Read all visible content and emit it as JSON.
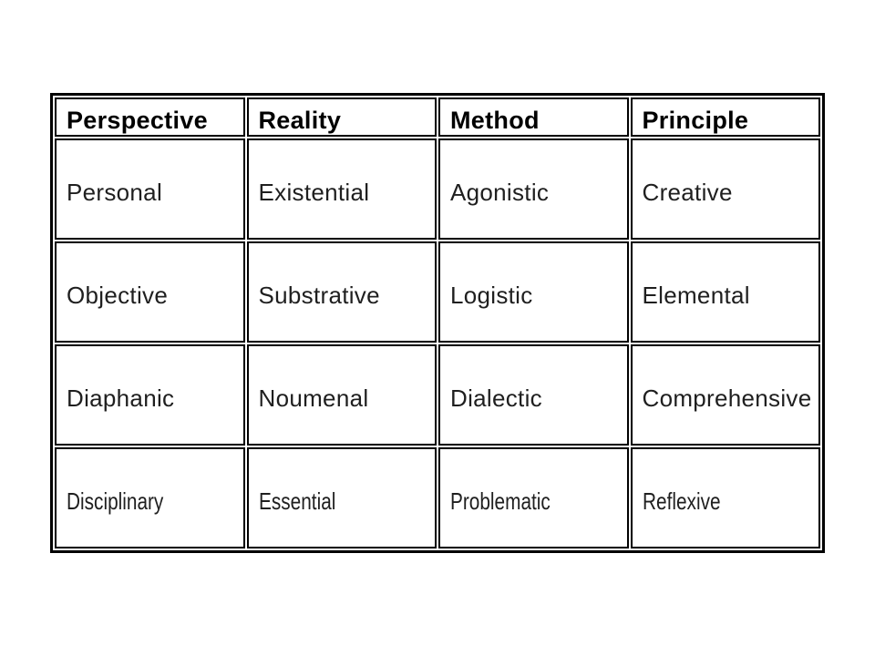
{
  "table": {
    "columns": [
      "Perspective",
      "Reality",
      "Method",
      "Principle"
    ],
    "rows": [
      [
        "Personal",
        "Existential",
        "Agonistic",
        "Creative"
      ],
      [
        "Objective",
        "Substrative",
        "Logistic",
        "Elemental"
      ],
      [
        "Diaphanic",
        "Noumenal",
        "Dialectic",
        "Comprehensive"
      ],
      [
        "Disciplinary",
        "Essential",
        "Problematic",
        "Reflexive"
      ]
    ],
    "border_color": "#000000",
    "background_color": "#ffffff",
    "header_text_color": "#000000",
    "cell_text_color": "#1f1f1f"
  }
}
